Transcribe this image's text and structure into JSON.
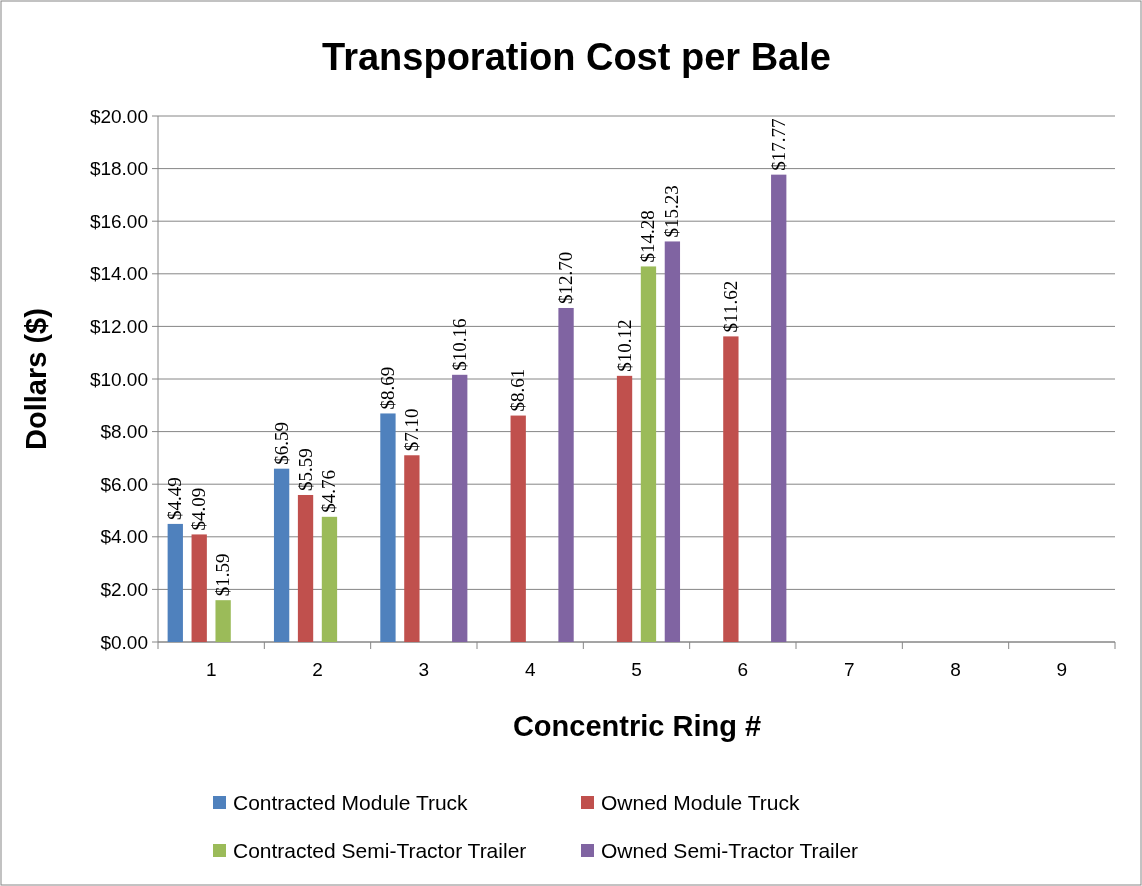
{
  "chart_data": {
    "type": "bar",
    "title": "Transporation Cost per Bale",
    "xlabel": "Concentric Ring #",
    "ylabel": "Dollars ($)",
    "categories": [
      "1",
      "2",
      "3",
      "4",
      "5",
      "6",
      "7",
      "8",
      "9"
    ],
    "series": [
      {
        "name": "Contracted Module Truck",
        "color": "#4f81bd",
        "values": [
          4.49,
          6.59,
          8.69,
          null,
          null,
          null,
          null,
          null,
          null
        ],
        "value_labels": [
          "$4.49",
          "$6.59",
          "$8.69",
          null,
          null,
          null,
          null,
          null,
          null
        ]
      },
      {
        "name": "Owned Module Truck",
        "color": "#c0504d",
        "values": [
          4.09,
          5.59,
          7.1,
          8.61,
          10.12,
          11.62,
          null,
          null,
          null
        ],
        "value_labels": [
          "$4.09",
          "$5.59",
          "$7.10",
          "$8.61",
          "$10.12",
          "$11.62",
          null,
          null,
          null
        ]
      },
      {
        "name": "Contracted Semi-Tractor Trailer",
        "color": "#9bbb59",
        "values": [
          1.59,
          4.76,
          null,
          null,
          14.28,
          null,
          null,
          null,
          null
        ],
        "value_labels": [
          "$1.59",
          "$4.76",
          null,
          null,
          "$14.28",
          null,
          null,
          null,
          null
        ]
      },
      {
        "name": "Owned Semi-Tractor Trailer",
        "color": "#8064a2",
        "values": [
          null,
          null,
          10.16,
          12.7,
          15.23,
          17.77,
          null,
          null,
          null
        ],
        "value_labels": [
          null,
          null,
          "$10.16",
          "$12.70",
          "$15.23",
          "$17.77",
          null,
          null,
          null
        ]
      }
    ],
    "ylim": [
      0,
      20
    ],
    "yticks": [
      {
        "value": 0,
        "label": "$0.00"
      },
      {
        "value": 2,
        "label": "$2.00"
      },
      {
        "value": 4,
        "label": "$4.00"
      },
      {
        "value": 6,
        "label": "$6.00"
      },
      {
        "value": 8,
        "label": "$8.00"
      },
      {
        "value": 10,
        "label": "$10.00"
      },
      {
        "value": 12,
        "label": "$12.00"
      },
      {
        "value": 14,
        "label": "$14.00"
      },
      {
        "value": 16,
        "label": "$16.00"
      },
      {
        "value": 18,
        "label": "$18.00"
      },
      {
        "value": 20,
        "label": "$20.00"
      }
    ],
    "grid": "y",
    "legend": "bottom"
  }
}
